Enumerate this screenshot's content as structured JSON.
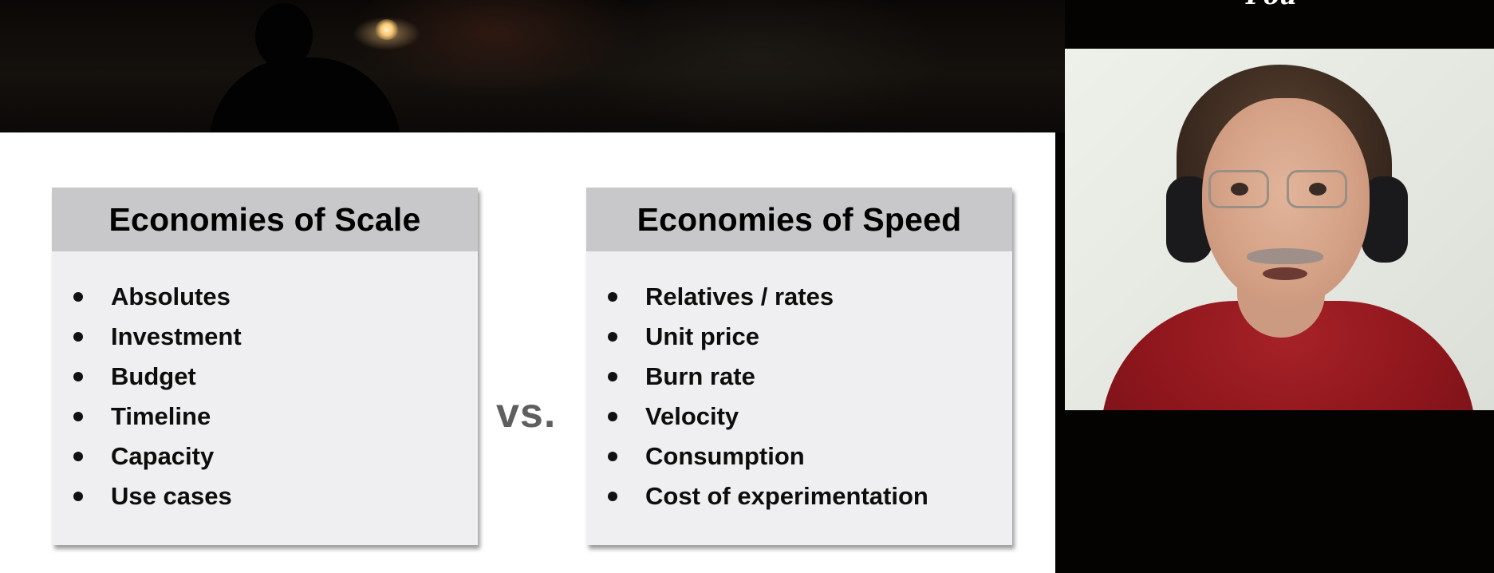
{
  "overlay": {
    "corner_text": "Pou"
  },
  "slide": {
    "left_card": {
      "title": "Economies of Scale",
      "items": [
        "Absolutes",
        "Investment",
        "Budget",
        "Timeline",
        "Capacity",
        "Use cases"
      ]
    },
    "vs_label": "vs.",
    "right_card": {
      "title": "Economies of Speed",
      "items": [
        "Relatives / rates",
        "Unit price",
        "Burn rate",
        "Velocity",
        "Consumption",
        "Cost of experimentation"
      ]
    }
  },
  "colors": {
    "slide_background": "#ffffff",
    "card_body": "#efeff1",
    "card_header": "#c8c8ca",
    "vs_text": "#5f5f5f",
    "stage_background": "#040302",
    "shirt": "#8d161c"
  }
}
